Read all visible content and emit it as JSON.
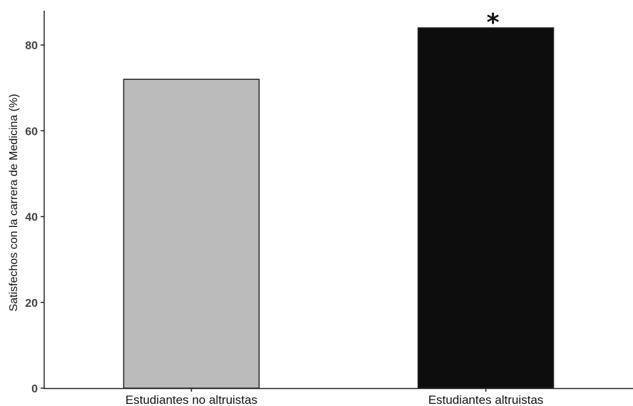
{
  "chart_data": {
    "type": "bar",
    "title": "",
    "xlabel": "",
    "ylabel": "Satisfechos con la carrera de Medicina (%)",
    "categories": [
      "Estudiantes no altruistas",
      "Estudiantes altruistas"
    ],
    "values": [
      72,
      84
    ],
    "colors": [
      "#bbbbbb",
      "#0d0d0d"
    ],
    "ylim": [
      0,
      88
    ],
    "yticks": [
      "0",
      "20",
      "40",
      "60",
      "80"
    ],
    "annotations": [
      {
        "category": "Estudiantes altruistas",
        "text": "*"
      }
    ],
    "grid": false,
    "legend": "none"
  }
}
